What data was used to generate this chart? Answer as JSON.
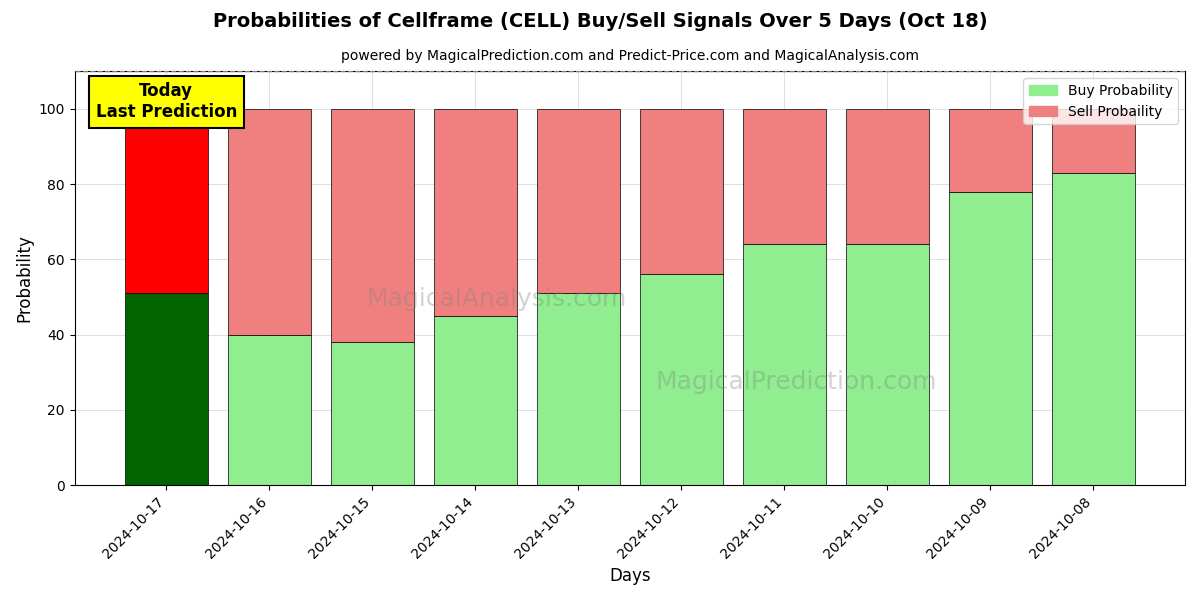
{
  "title": "Probabilities of Cellframe (CELL) Buy/Sell Signals Over 5 Days (Oct 18)",
  "subtitle": "powered by MagicalPrediction.com and Predict-Price.com and MagicalAnalysis.com",
  "xlabel": "Days",
  "ylabel": "Probability",
  "dates": [
    "2024-10-17",
    "2024-10-16",
    "2024-10-15",
    "2024-10-14",
    "2024-10-13",
    "2024-10-12",
    "2024-10-11",
    "2024-10-10",
    "2024-10-09",
    "2024-10-08"
  ],
  "buy_values": [
    51,
    40,
    38,
    45,
    51,
    56,
    64,
    64,
    78,
    83
  ],
  "sell_values": [
    49,
    60,
    62,
    55,
    49,
    44,
    36,
    36,
    22,
    17
  ],
  "buy_color_today": "#006400",
  "sell_color_today": "#FF0000",
  "buy_color_rest": "#90EE90",
  "sell_color_rest": "#F08080",
  "today_annotation": "Today\nLast Prediction",
  "legend_buy": "Buy Probability",
  "legend_sell": "Sell Probaility",
  "ylim": [
    0,
    110
  ],
  "dashed_line_y": 110,
  "watermark_texts": [
    "MagicalAnalysis.com",
    "MagicalPrediction.com"
  ],
  "bar_width": 0.8,
  "figsize": [
    12.0,
    6.0
  ],
  "dpi": 100
}
